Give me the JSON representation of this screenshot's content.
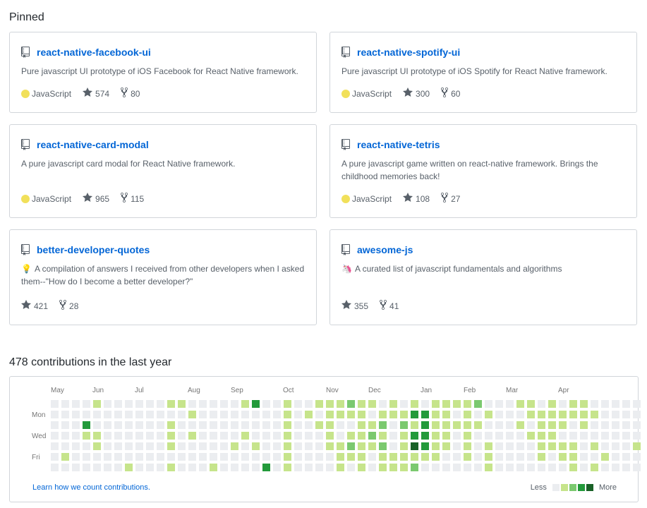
{
  "pinned": {
    "title": "Pinned",
    "repos": [
      {
        "name": "react-native-facebook-ui",
        "desc": "Pure javascript UI prototype of iOS Facebook for React Native framework.",
        "emoji": "",
        "lang": "JavaScript",
        "stars": "574",
        "forks": "80"
      },
      {
        "name": "react-native-spotify-ui",
        "desc": "Pure javascript UI prototype of iOS Spotify for React Native framework.",
        "emoji": "",
        "lang": "JavaScript",
        "stars": "300",
        "forks": "60"
      },
      {
        "name": "react-native-card-modal",
        "desc": "A pure javascript card modal for React Native framework.",
        "emoji": "",
        "lang": "JavaScript",
        "stars": "965",
        "forks": "115"
      },
      {
        "name": "react-native-tetris",
        "desc": "A pure javascript game written on react-native framework. Brings the childhood memories back!",
        "emoji": "",
        "lang": "JavaScript",
        "stars": "108",
        "forks": "27"
      },
      {
        "name": "better-developer-quotes",
        "desc": "A compilation of answers I received from other developers when I asked them--\"How do I become a better developer?\"",
        "emoji": "💡",
        "lang": "",
        "stars": "421",
        "forks": "28"
      },
      {
        "name": "awesome-js",
        "desc": "A curated list of javascript fundamentals and algorithms",
        "emoji": "🦄",
        "lang": "",
        "stars": "355",
        "forks": "41"
      }
    ]
  },
  "contributions": {
    "title": "478 contributions in the last year",
    "months": [
      "May",
      "Jun",
      "Jul",
      "Aug",
      "Sep",
      "Oct",
      "Nov",
      "Dec",
      "Jan",
      "Feb",
      "Mar",
      "Apr"
    ],
    "days": [
      "Mon",
      "Wed",
      "Fri"
    ],
    "learn_link": "Learn how we count contributions.",
    "legend_less": "Less",
    "legend_more": "More",
    "colors": {
      "empty": "#ebedf0",
      "l1": "#c6e48b",
      "l2": "#7bc96f",
      "l3": "#239a3b",
      "l4": "#196127"
    },
    "weeks_levels": [
      "0000000",
      "0000000",
      "0000000",
      "0000000",
      "1000000",
      "0000000",
      "0000000",
      "0000000",
      "0000001",
      "0000000",
      "0000000",
      "0000000",
      "0000000",
      "0000000",
      "0000000",
      "0000000",
      "1000000",
      "0000000",
      "0000000",
      "0010010",
      "0100000",
      "0000010",
      "0000000",
      "0000000",
      "0000000",
      "0000030",
      "0000000",
      "0000001",
      "0000100",
      "0000000",
      "0000000",
      "0000000",
      "3000000",
      "0000000",
      "0000000"
    ],
    "levels": [
      [
        0,
        0,
        0,
        0,
        0,
        0,
        0
      ],
      [
        0,
        0,
        0,
        0,
        0,
        1,
        0
      ],
      [
        0,
        0,
        0,
        0,
        0,
        0,
        0
      ],
      [
        0,
        0,
        3,
        1,
        0,
        0,
        0
      ],
      [
        1,
        0,
        0,
        1,
        1,
        0,
        0
      ],
      [
        0,
        0,
        0,
        0,
        0,
        0,
        0
      ],
      [
        0,
        0,
        0,
        0,
        0,
        0,
        0
      ],
      [
        0,
        0,
        0,
        0,
        0,
        0,
        1
      ],
      [
        0,
        0,
        0,
        0,
        0,
        0,
        0
      ],
      [
        0,
        0,
        0,
        0,
        0,
        0,
        0
      ],
      [
        0,
        0,
        0,
        0,
        0,
        0,
        0
      ],
      [
        1,
        0,
        1,
        1,
        1,
        0,
        1
      ],
      [
        1,
        0,
        0,
        0,
        0,
        0,
        0
      ],
      [
        0,
        1,
        0,
        1,
        0,
        0,
        0
      ],
      [
        0,
        0,
        0,
        0,
        0,
        0,
        0
      ],
      [
        0,
        0,
        0,
        0,
        0,
        0,
        1
      ],
      [
        0,
        0,
        0,
        0,
        0,
        0,
        0
      ],
      [
        0,
        0,
        0,
        0,
        1,
        0,
        0
      ],
      [
        1,
        0,
        0,
        1,
        0,
        0,
        0
      ],
      [
        3,
        0,
        0,
        0,
        1,
        0,
        0
      ],
      [
        0,
        0,
        0,
        0,
        0,
        0,
        3
      ],
      [
        0,
        0,
        0,
        0,
        0,
        0,
        0
      ],
      [
        1,
        1,
        1,
        1,
        1,
        1,
        1
      ],
      [
        0,
        0,
        0,
        0,
        0,
        0,
        0
      ],
      [
        0,
        1,
        0,
        0,
        0,
        0,
        0
      ],
      [
        1,
        0,
        1,
        0,
        0,
        0,
        0
      ],
      [
        1,
        1,
        1,
        1,
        1,
        0,
        0
      ],
      [
        1,
        1,
        0,
        0,
        1,
        1,
        1
      ],
      [
        2,
        1,
        0,
        1,
        2,
        1,
        0
      ],
      [
        1,
        1,
        1,
        1,
        1,
        1,
        1
      ],
      [
        1,
        0,
        1,
        2,
        1,
        0,
        0
      ],
      [
        0,
        1,
        2,
        1,
        2,
        1,
        1
      ],
      [
        1,
        1,
        0,
        0,
        0,
        1,
        1
      ],
      [
        0,
        1,
        2,
        1,
        1,
        1,
        1
      ],
      [
        1,
        3,
        1,
        3,
        4,
        1,
        2
      ],
      [
        0,
        3,
        3,
        3,
        3,
        1,
        0
      ],
      [
        1,
        1,
        1,
        1,
        1,
        1,
        0
      ],
      [
        1,
        1,
        1,
        1,
        1,
        0,
        0
      ],
      [
        1,
        0,
        1,
        0,
        0,
        0,
        0
      ],
      [
        1,
        1,
        1,
        1,
        1,
        1,
        0
      ],
      [
        2,
        0,
        1,
        0,
        0,
        0,
        0
      ],
      [
        0,
        1,
        0,
        0,
        1,
        1,
        1
      ],
      [
        0,
        0,
        0,
        0,
        0,
        0,
        0
      ],
      [
        0,
        0,
        0,
        0,
        0,
        0,
        0
      ],
      [
        1,
        0,
        1,
        0,
        0,
        0,
        0
      ],
      [
        1,
        1,
        0,
        1,
        0,
        0,
        0
      ],
      [
        0,
        1,
        1,
        1,
        1,
        1,
        0
      ],
      [
        1,
        1,
        1,
        1,
        1,
        0,
        0
      ],
      [
        0,
        1,
        1,
        0,
        1,
        1,
        0
      ],
      [
        1,
        1,
        0,
        0,
        1,
        1,
        1
      ],
      [
        1,
        1,
        1,
        0,
        0,
        0,
        0
      ],
      [
        0,
        1,
        0,
        0,
        1,
        0,
        1
      ],
      [
        0,
        0,
        0,
        0,
        0,
        1,
        0
      ],
      [
        0,
        0,
        0,
        0,
        0,
        0,
        0
      ],
      [
        0,
        0,
        0,
        0,
        0,
        0,
        0
      ],
      [
        0,
        0,
        0,
        0,
        1,
        0,
        0
      ]
    ]
  }
}
